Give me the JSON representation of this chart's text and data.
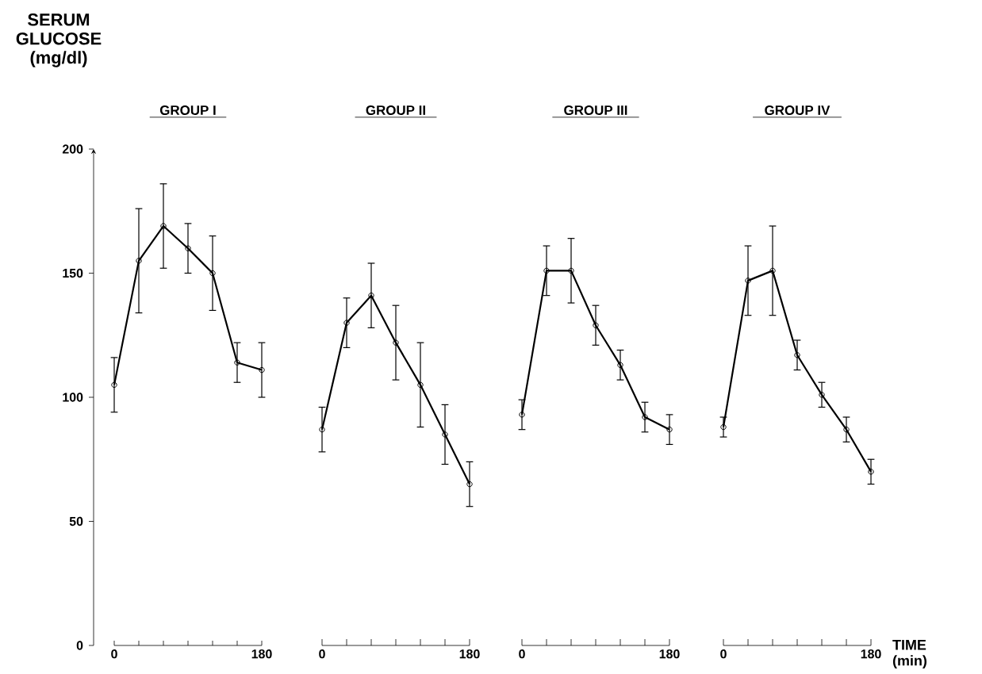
{
  "chart_data": [
    {
      "type": "line",
      "title": "GROUP I",
      "ylabel": "SERUM GLUCOSE (mg/dl)",
      "x": [
        0,
        30,
        60,
        90,
        120,
        150,
        180
      ],
      "xlim": [
        0,
        180
      ],
      "xticks": [
        0,
        {
          "value": 30,
          "label": null
        },
        {
          "value": 60,
          "label": null
        },
        {
          "value": 90,
          "label": null
        },
        {
          "value": 120,
          "label": null
        },
        {
          "value": 150,
          "label": null
        },
        180
      ],
      "ylim": [
        0,
        200
      ],
      "yticks": [
        0,
        50,
        100,
        150,
        200
      ],
      "marker": "circle",
      "line_style": "solid",
      "series": [
        {
          "color": "#000000",
          "values": [
            105,
            155,
            169,
            160,
            150,
            114,
            111
          ],
          "errors": [
            11,
            21,
            17,
            10,
            15,
            8,
            11
          ]
        }
      ]
    },
    {
      "type": "line",
      "title": "GROUP II",
      "x": [
        0,
        30,
        60,
        90,
        120,
        150,
        180
      ],
      "xlim": [
        0,
        180
      ],
      "xticks": [
        0,
        {
          "value": 30,
          "label": null
        },
        {
          "value": 60,
          "label": null
        },
        {
          "value": 90,
          "label": null
        },
        {
          "value": 120,
          "label": null
        },
        {
          "value": 150,
          "label": null
        },
        180
      ],
      "ylim": [
        0,
        200
      ],
      "tick_labels": "x",
      "marker": "circle",
      "line_style": "solid",
      "series": [
        {
          "color": "#000000",
          "values": [
            87,
            130,
            141,
            122,
            105,
            85,
            65
          ],
          "errors": [
            9,
            10,
            13,
            15,
            17,
            12,
            9
          ]
        }
      ]
    },
    {
      "type": "line",
      "title": "GROUP III",
      "x": [
        0,
        30,
        60,
        90,
        120,
        150,
        180
      ],
      "xlim": [
        0,
        180
      ],
      "xticks": [
        0,
        {
          "value": 30,
          "label": null
        },
        {
          "value": 60,
          "label": null
        },
        {
          "value": 90,
          "label": null
        },
        {
          "value": 120,
          "label": null
        },
        {
          "value": 150,
          "label": null
        },
        180
      ],
      "ylim": [
        0,
        200
      ],
      "tick_labels": "x",
      "marker": "circle",
      "line_style": "solid",
      "series": [
        {
          "color": "#000000",
          "values": [
            93,
            151,
            151,
            129,
            113,
            92,
            87
          ],
          "errors": [
            6,
            10,
            13,
            8,
            6,
            6,
            6
          ]
        }
      ]
    },
    {
      "type": "line",
      "title": "GROUP IV",
      "xlabel": "TIME (min)",
      "x": [
        0,
        30,
        60,
        90,
        120,
        150,
        180
      ],
      "xlim": [
        0,
        180
      ],
      "xticks": [
        0,
        {
          "value": 30,
          "label": null
        },
        {
          "value": 60,
          "label": null
        },
        {
          "value": 90,
          "label": null
        },
        {
          "value": 120,
          "label": null
        },
        {
          "value": 150,
          "label": null
        },
        180
      ],
      "ylim": [
        0,
        200
      ],
      "tick_labels": "x",
      "marker": "circle",
      "line_style": "solid",
      "series": [
        {
          "color": "#000000",
          "values": [
            88,
            147,
            151,
            117,
            101,
            87,
            70
          ],
          "errors": [
            4,
            14,
            18,
            6,
            5,
            5,
            5
          ]
        }
      ]
    }
  ]
}
